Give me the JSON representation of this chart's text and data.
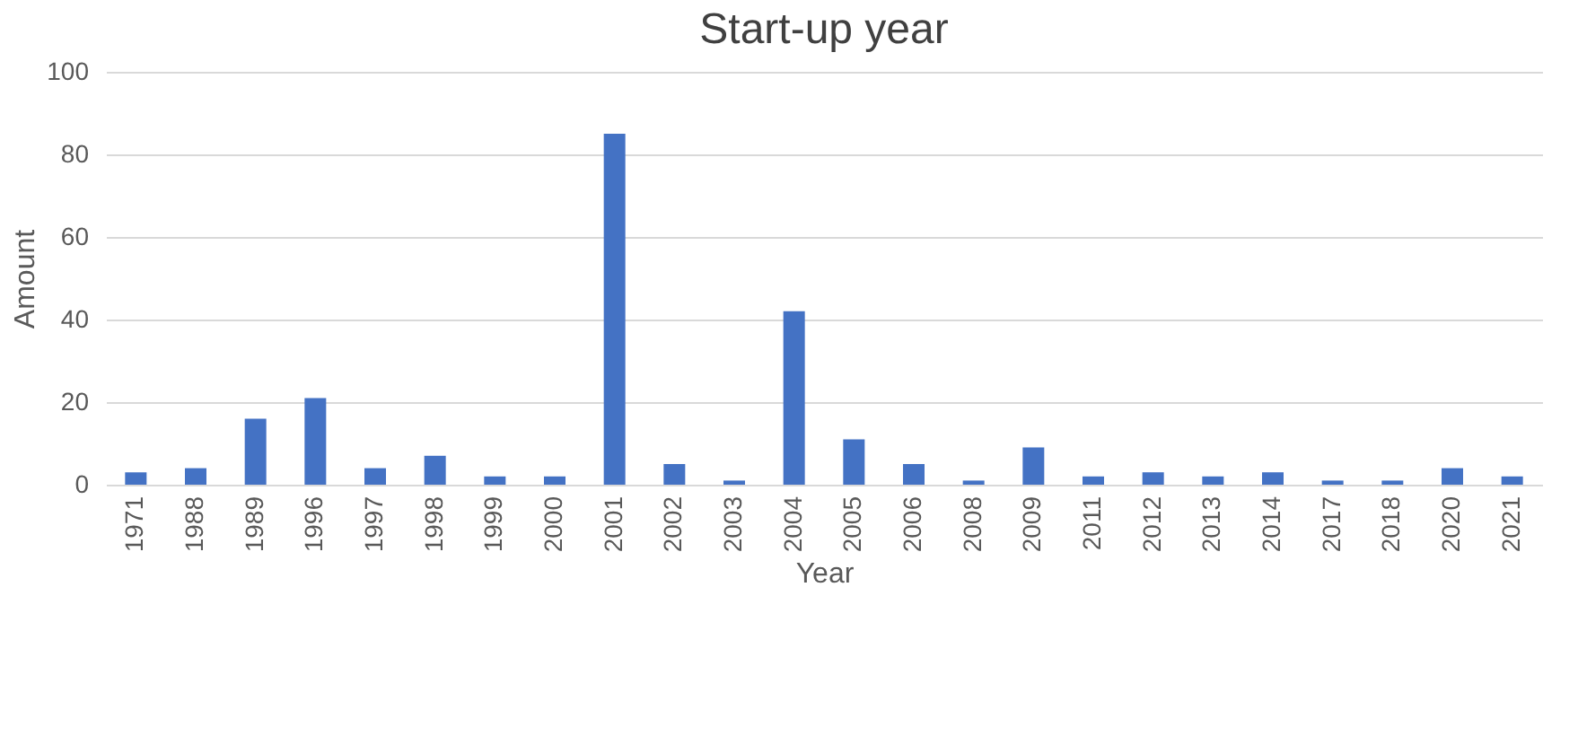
{
  "chart_data": {
    "type": "bar",
    "title": "Start-up year",
    "xlabel": "Year",
    "ylabel": "Amount",
    "categories": [
      "1971",
      "1988",
      "1989",
      "1996",
      "1997",
      "1998",
      "1999",
      "2000",
      "2001",
      "2002",
      "2003",
      "2004",
      "2005",
      "2006",
      "2008",
      "2009",
      "2011",
      "2012",
      "2013",
      "2014",
      "2017",
      "2018",
      "2020",
      "2021"
    ],
    "values": [
      3,
      4,
      16,
      21,
      4,
      7,
      2,
      2,
      85,
      5,
      1,
      42,
      11,
      5,
      1,
      9,
      2,
      3,
      2,
      3,
      1,
      1,
      4,
      2
    ],
    "color": "#4472c4",
    "ylim": [
      0,
      100
    ],
    "yticks": [
      0,
      20,
      40,
      60,
      80,
      100
    ],
    "grid": "y"
  }
}
